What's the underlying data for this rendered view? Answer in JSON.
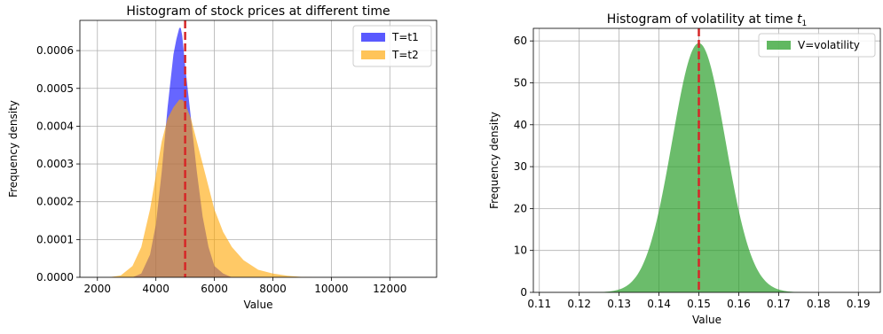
{
  "chart_data": [
    {
      "type": "histogram",
      "title": "Histogram of stock prices at different time",
      "xlabel": "Value",
      "ylabel": "Frequency density",
      "xlim": [
        1400,
        13600
      ],
      "ylim": [
        0,
        0.00068
      ],
      "xticks": [
        2000,
        4000,
        6000,
        8000,
        10000,
        12000
      ],
      "xtick_labels": [
        "2000",
        "4000",
        "6000",
        "8000",
        "10000",
        "12000"
      ],
      "yticks": [
        0,
        0.0001,
        0.0002,
        0.0003,
        0.0004,
        0.0005,
        0.0006
      ],
      "ytick_labels": [
        "0.0000",
        "0.0001",
        "0.0002",
        "0.0003",
        "0.0004",
        "0.0005",
        "0.0006"
      ],
      "grid": true,
      "legend_position": "top-right",
      "vline": {
        "x": 5000,
        "color": "#d62728",
        "style": "dashed"
      },
      "series": [
        {
          "name": "T=t1",
          "color": "#0000ff",
          "opacity": 0.6,
          "x": [
            3200,
            3500,
            3800,
            4000,
            4200,
            4400,
            4600,
            4700,
            4800,
            4850,
            4900,
            4950,
            5000,
            5100,
            5200,
            5400,
            5600,
            5800,
            6000,
            6300,
            6600
          ],
          "y": [
            0.0,
            1e-05,
            6e-05,
            0.00014,
            0.00028,
            0.00045,
            0.00059,
            0.00063,
            0.00066,
            0.00066,
            0.00064,
            0.0006,
            0.00056,
            0.00049,
            0.00042,
            0.00028,
            0.00016,
            8e-05,
            3e-05,
            1e-05,
            0.0
          ]
        },
        {
          "name": "T=t2",
          "color": "#ffa500",
          "opacity": 0.6,
          "x": [
            2400,
            2800,
            3200,
            3500,
            3800,
            4000,
            4200,
            4400,
            4600,
            4800,
            4900,
            5000,
            5200,
            5400,
            5600,
            5800,
            6000,
            6300,
            6600,
            7000,
            7500,
            8000,
            8500,
            9000,
            9500
          ],
          "y": [
            0.0,
            5e-06,
            3e-05,
            8e-05,
            0.00018,
            0.00027,
            0.00036,
            0.00042,
            0.00045,
            0.00047,
            0.00047,
            0.00046,
            0.00042,
            0.00036,
            0.0003,
            0.00024,
            0.00018,
            0.00012,
            8e-05,
            4.5e-05,
            2e-05,
            1e-05,
            4e-06,
            1e-06,
            0.0
          ]
        }
      ]
    },
    {
      "type": "histogram",
      "title": "Histogram of volatility at time ",
      "title_italic": "t",
      "title_subscript": "1",
      "xlabel": "Value",
      "ylabel": "Frequency density",
      "xlim": [
        0.1085,
        0.1955
      ],
      "ylim": [
        0,
        63
      ],
      "xticks": [
        0.11,
        0.12,
        0.13,
        0.14,
        0.15,
        0.16,
        0.17,
        0.18,
        0.19
      ],
      "xtick_labels": [
        "0.11",
        "0.12",
        "0.13",
        "0.14",
        "0.15",
        "0.16",
        "0.17",
        "0.18",
        "0.19"
      ],
      "yticks": [
        0,
        10,
        20,
        30,
        40,
        50,
        60
      ],
      "ytick_labels": [
        "0",
        "10",
        "20",
        "30",
        "40",
        "50",
        "60"
      ],
      "grid": true,
      "legend_position": "top-right",
      "vline": {
        "x": 0.15,
        "color": "#d62728",
        "style": "dashed"
      },
      "series": [
        {
          "name": "V=volatility",
          "color": "#2ca02c",
          "opacity": 0.7,
          "mean": 0.15,
          "std": 0.0067,
          "peak": 59.5,
          "x_range": [
            0.122,
            0.178
          ]
        }
      ]
    }
  ]
}
